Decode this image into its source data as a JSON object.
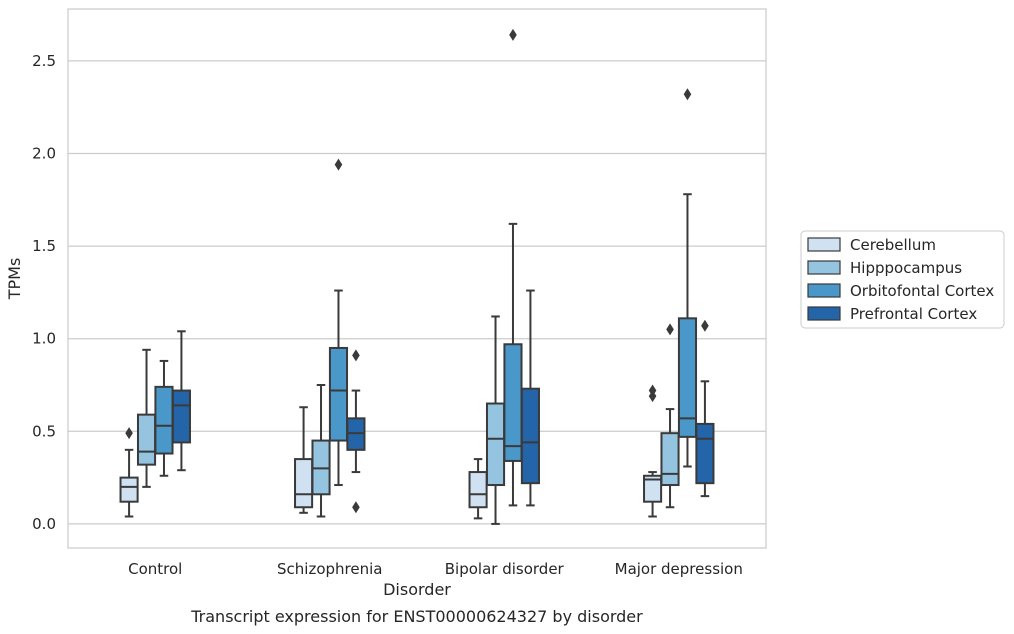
{
  "chart_data": {
    "type": "box",
    "title": "",
    "caption": "Transcript expression for ENST00000624327 by disorder",
    "xlabel": "Disorder",
    "ylabel": "TPMs",
    "ylim": [
      -0.13,
      2.78
    ],
    "yticks": [
      0.0,
      0.5,
      1.0,
      1.5,
      2.0,
      2.5
    ],
    "ytick_labels": [
      "0.0",
      "0.5",
      "1.0",
      "1.5",
      "2.0",
      "2.5"
    ],
    "grid": "horizontal",
    "legend_position": "right",
    "categories": [
      "Control",
      "Schizophrenia",
      "Bipolar disorder",
      "Major depression"
    ],
    "series": [
      {
        "name": "Cerebellum",
        "color": "#d0e1f2",
        "boxes": [
          {
            "whisker_low": 0.04,
            "q1": 0.12,
            "median": 0.2,
            "q3": 0.25,
            "whisker_high": 0.4,
            "outliers": [
              0.49
            ]
          },
          {
            "whisker_low": 0.06,
            "q1": 0.09,
            "median": 0.16,
            "q3": 0.35,
            "whisker_high": 0.63,
            "outliers": []
          },
          {
            "whisker_low": 0.03,
            "q1": 0.09,
            "median": 0.16,
            "q3": 0.28,
            "whisker_high": 0.35,
            "outliers": []
          },
          {
            "whisker_low": 0.04,
            "q1": 0.12,
            "median": 0.24,
            "q3": 0.26,
            "whisker_high": 0.28,
            "outliers": [
              0.69,
              0.72
            ]
          }
        ]
      },
      {
        "name": "Hipppocampus",
        "color": "#94c4df",
        "boxes": [
          {
            "whisker_low": 0.2,
            "q1": 0.32,
            "median": 0.39,
            "q3": 0.59,
            "whisker_high": 0.94,
            "outliers": []
          },
          {
            "whisker_low": 0.04,
            "q1": 0.16,
            "median": 0.3,
            "q3": 0.45,
            "whisker_high": 0.75,
            "outliers": []
          },
          {
            "whisker_low": 0.0,
            "q1": 0.21,
            "median": 0.46,
            "q3": 0.65,
            "whisker_high": 1.12,
            "outliers": []
          },
          {
            "whisker_low": 0.09,
            "q1": 0.21,
            "median": 0.27,
            "q3": 0.49,
            "whisker_high": 0.62,
            "outliers": [
              1.05
            ]
          }
        ]
      },
      {
        "name": "Orbitofontal Cortex",
        "color": "#4a98c9",
        "boxes": [
          {
            "whisker_low": 0.26,
            "q1": 0.38,
            "median": 0.53,
            "q3": 0.74,
            "whisker_high": 0.88,
            "outliers": []
          },
          {
            "whisker_low": 0.21,
            "q1": 0.45,
            "median": 0.72,
            "q3": 0.95,
            "whisker_high": 1.26,
            "outliers": [
              1.94
            ]
          },
          {
            "whisker_low": 0.1,
            "q1": 0.34,
            "median": 0.42,
            "q3": 0.97,
            "whisker_high": 1.62,
            "outliers": [
              2.64
            ]
          },
          {
            "whisker_low": 0.31,
            "q1": 0.47,
            "median": 0.57,
            "q3": 1.11,
            "whisker_high": 1.78,
            "outliers": [
              2.32
            ]
          }
        ]
      },
      {
        "name": "Prefrontal Cortex",
        "color": "#2464a8",
        "boxes": [
          {
            "whisker_low": 0.29,
            "q1": 0.44,
            "median": 0.64,
            "q3": 0.72,
            "whisker_high": 1.04,
            "outliers": []
          },
          {
            "whisker_low": 0.28,
            "q1": 0.4,
            "median": 0.49,
            "q3": 0.57,
            "whisker_high": 0.72,
            "outliers": [
              0.09,
              0.91
            ]
          },
          {
            "whisker_low": 0.1,
            "q1": 0.22,
            "median": 0.44,
            "q3": 0.73,
            "whisker_high": 1.26,
            "outliers": []
          },
          {
            "whisker_low": 0.15,
            "q1": 0.22,
            "median": 0.46,
            "q3": 0.54,
            "whisker_high": 0.77,
            "outliers": [
              1.07
            ]
          }
        ]
      }
    ]
  }
}
